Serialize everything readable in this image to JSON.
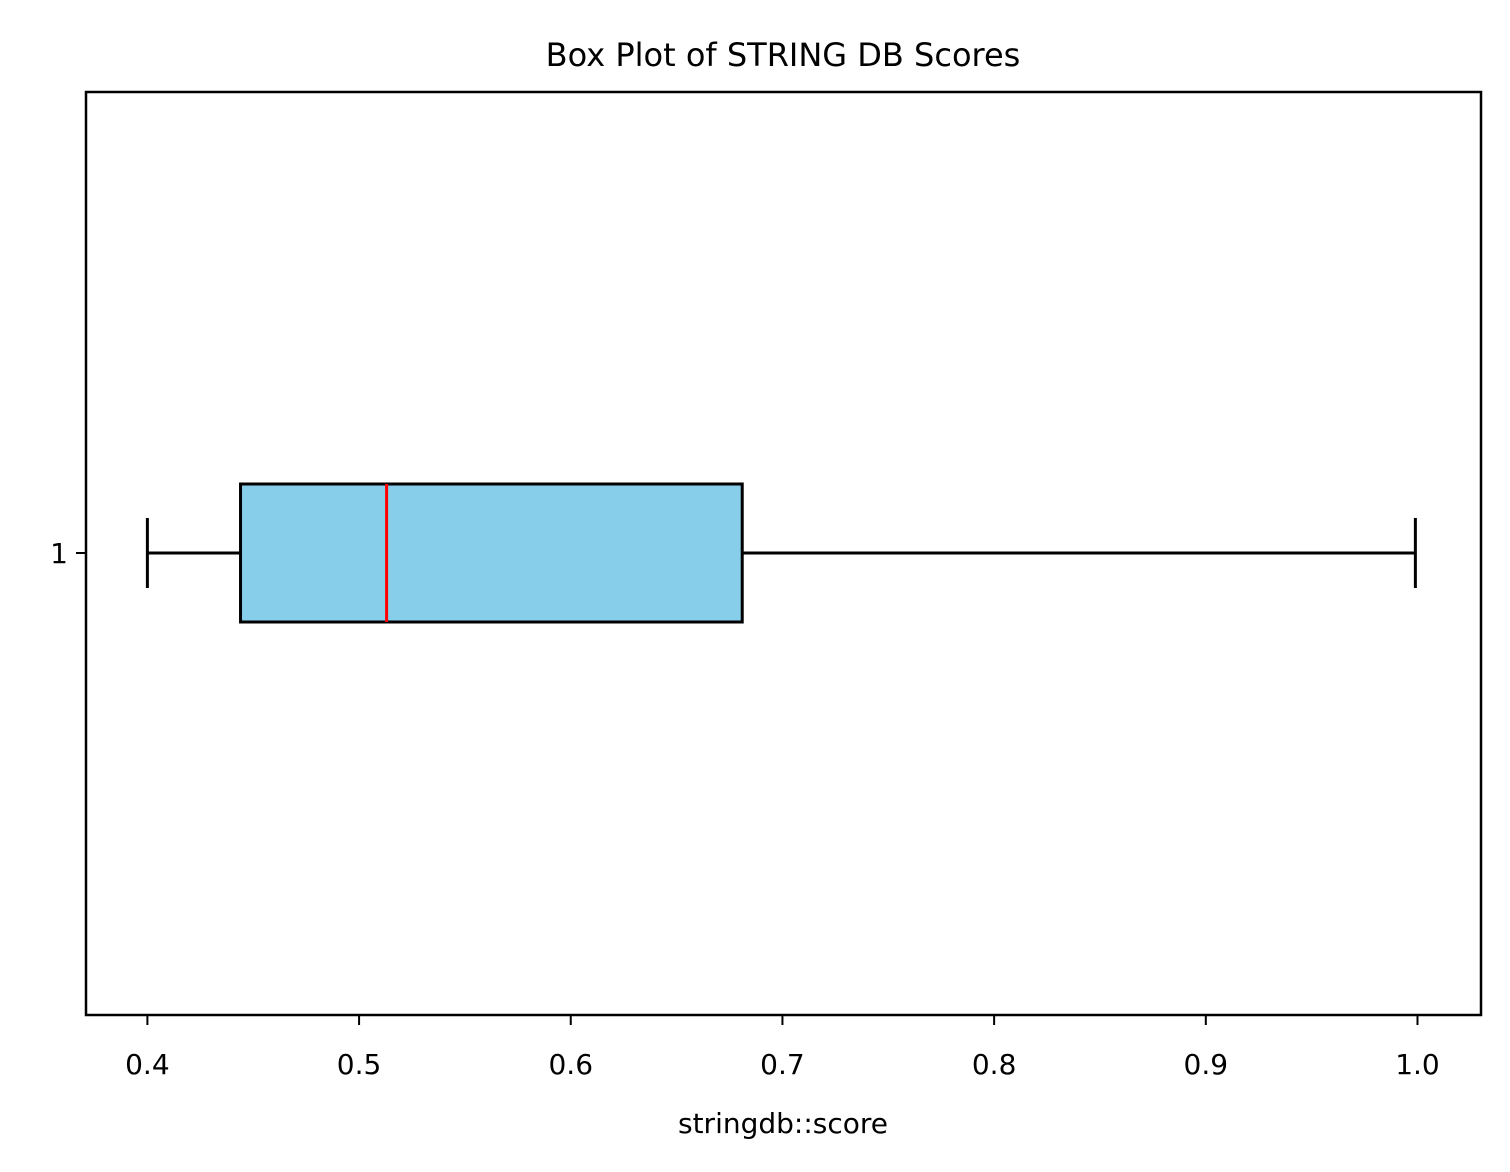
{
  "chart_data": {
    "type": "boxplot",
    "orientation": "horizontal",
    "title": "Box Plot of STRING DB Scores",
    "xlabel": "stringdb::score",
    "ylabel": "",
    "xlim": [
      0.371,
      1.03
    ],
    "xticks": [
      0.4,
      0.5,
      0.6,
      0.7,
      0.8,
      0.9,
      1.0
    ],
    "xtick_labels": [
      "0.4",
      "0.5",
      "0.6",
      "0.7",
      "0.8",
      "0.9",
      "1.0"
    ],
    "categories": [
      "1"
    ],
    "series": [
      {
        "name": "1",
        "whisker_low": 0.4,
        "q1": 0.444,
        "median": 0.513,
        "q3": 0.681,
        "whisker_high": 0.999
      }
    ],
    "grid": false,
    "colors": {
      "box_fill": "#87ceeb",
      "box_edge": "#000000",
      "median": "#ff0000",
      "whisker": "#000000"
    }
  }
}
